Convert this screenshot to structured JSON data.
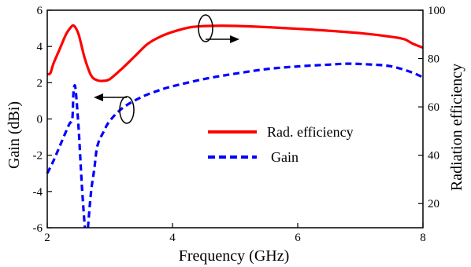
{
  "chart_data": {
    "type": "line",
    "xlabel": "Frequency (GHz)",
    "ylabel_left": "Gain (dBi)",
    "ylabel_right": "Radiation efficiency",
    "xlim": [
      2,
      8
    ],
    "ylim_left": [
      -6,
      6
    ],
    "ylim_right": [
      10,
      100
    ],
    "x_ticks": [
      "2",
      "4",
      "6",
      "8"
    ],
    "y_left_ticks": [
      "6",
      "4",
      "2",
      "0",
      "-2",
      "-4",
      "-6"
    ],
    "y_right_ticks": [
      "100",
      "80",
      "60",
      "40",
      "20"
    ],
    "legend_position": "center-right",
    "grid": false,
    "series": [
      {
        "name": "Rad. efficiency",
        "axis": "right",
        "color": "#ff0000",
        "style": "solid",
        "points": [
          [
            2.0,
            73.5
          ],
          [
            2.05,
            74.0
          ],
          [
            2.1,
            78.0
          ],
          [
            2.2,
            84.0
          ],
          [
            2.3,
            90.0
          ],
          [
            2.38,
            93.0
          ],
          [
            2.43,
            93.5
          ],
          [
            2.5,
            90.0
          ],
          [
            2.6,
            80.0
          ],
          [
            2.7,
            73.0
          ],
          [
            2.8,
            71.0
          ],
          [
            2.9,
            70.8
          ],
          [
            3.0,
            71.5
          ],
          [
            3.2,
            76.0
          ],
          [
            3.4,
            81.0
          ],
          [
            3.6,
            86.0
          ],
          [
            3.8,
            89.0
          ],
          [
            4.0,
            91.0
          ],
          [
            4.3,
            93.0
          ],
          [
            4.6,
            93.5
          ],
          [
            5.0,
            93.5
          ],
          [
            5.5,
            93.0
          ],
          [
            6.0,
            92.3
          ],
          [
            6.5,
            91.5
          ],
          [
            7.0,
            90.5
          ],
          [
            7.5,
            89.0
          ],
          [
            7.7,
            88.0
          ],
          [
            7.85,
            86.0
          ],
          [
            8.0,
            84.5
          ]
        ]
      },
      {
        "name": "Gain",
        "axis": "left",
        "color": "#0000ff",
        "style": "dashed",
        "points": [
          [
            2.0,
            -3.0
          ],
          [
            2.1,
            -2.3
          ],
          [
            2.2,
            -1.5
          ],
          [
            2.35,
            -0.3
          ],
          [
            2.4,
            0.0
          ],
          [
            2.42,
            1.5
          ],
          [
            2.45,
            1.7
          ],
          [
            2.5,
            -0.5
          ],
          [
            2.55,
            -3.5
          ],
          [
            2.6,
            -6.0
          ]
        ],
        "points_b": [
          [
            2.65,
            -6.0
          ],
          [
            2.7,
            -4.0
          ],
          [
            2.75,
            -2.8
          ],
          [
            2.8,
            -1.5
          ],
          [
            2.9,
            -0.7
          ],
          [
            3.0,
            -0.1
          ],
          [
            3.2,
            0.6
          ],
          [
            3.5,
            1.2
          ],
          [
            3.8,
            1.6
          ],
          [
            4.0,
            1.8
          ],
          [
            4.5,
            2.2
          ],
          [
            5.0,
            2.5
          ],
          [
            5.5,
            2.75
          ],
          [
            6.0,
            2.9
          ],
          [
            6.5,
            3.0
          ],
          [
            6.8,
            3.05
          ],
          [
            7.2,
            3.0
          ],
          [
            7.5,
            2.9
          ],
          [
            7.8,
            2.6
          ],
          [
            8.0,
            2.3
          ]
        ]
      }
    ]
  }
}
